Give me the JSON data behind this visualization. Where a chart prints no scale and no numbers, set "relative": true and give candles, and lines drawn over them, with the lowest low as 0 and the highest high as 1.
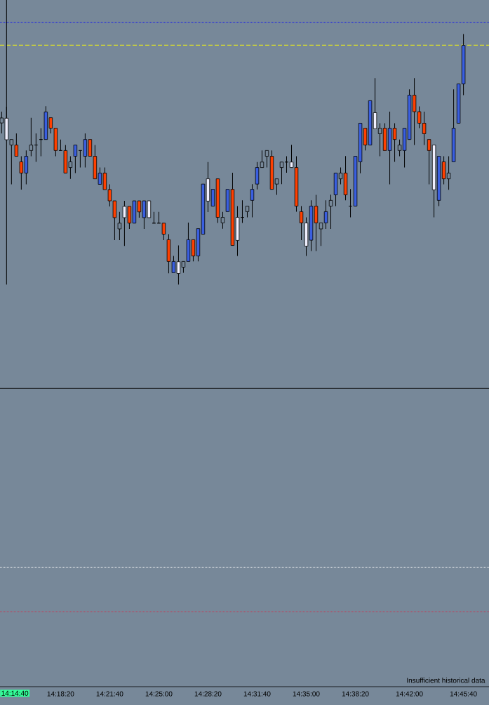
{
  "chart_data": {
    "type": "candlestick",
    "relative": true,
    "x": [
      14.23889,
      14.24444,
      14.25,
      14.25556,
      14.26111,
      14.26667,
      14.27222,
      14.27778,
      14.28333,
      14.28889,
      14.29444,
      14.3,
      14.30556,
      14.31111,
      14.31667,
      14.32222,
      14.32778,
      14.33333,
      14.33889,
      14.34444,
      14.35,
      14.35556,
      14.36111,
      14.36667,
      14.37222,
      14.37778,
      14.38333,
      14.38889,
      14.39444,
      14.4,
      14.40556,
      14.41111,
      14.41667,
      14.42222,
      14.42778,
      14.43333,
      14.43889,
      14.44444,
      14.45,
      14.45556,
      14.46111,
      14.46667,
      14.47222,
      14.47778,
      14.48333,
      14.48889,
      14.49444,
      14.5,
      14.50556,
      14.51111,
      14.51667,
      14.52222,
      14.52778,
      14.53333,
      14.53889,
      14.54444,
      14.55,
      14.55556,
      14.56111,
      14.56667,
      14.57222,
      14.57778,
      14.58333,
      14.58889,
      14.59444,
      14.6,
      14.60556,
      14.61111,
      14.61667,
      14.62222,
      14.62778,
      14.63333,
      14.63889,
      14.64444,
      14.65,
      14.65556,
      14.66111,
      14.66667,
      14.67222,
      14.67778,
      14.68333,
      14.68889,
      14.69444,
      14.7,
      14.70556,
      14.71111,
      14.71667,
      14.72222,
      14.72778,
      14.73333,
      14.73889,
      14.74444,
      14.75,
      14.75556,
      14.76111
    ],
    "ohlc": [
      [
        0.665,
        0.69,
        0.603,
        0.645
      ],
      [
        0.664,
        0.71,
        0.578,
        0.578
      ],
      [
        0.579,
        0.579,
        0.4,
        0.557
      ],
      [
        0.557,
        0.603,
        0.512,
        0.512
      ],
      [
        0.49,
        0.512,
        0.379,
        0.445
      ],
      [
        0.445,
        0.535,
        0.4,
        0.512
      ],
      [
        0.557,
        0.666,
        0.512,
        0.535
      ],
      [
        0.557,
        0.603,
        0.49,
        0.557
      ],
      [
        0.579,
        0.624,
        0.512,
        0.579
      ],
      [
        0.579,
        0.712,
        0.579,
        0.689
      ],
      [
        0.666,
        0.666,
        0.603,
        0.624
      ],
      [
        0.624,
        0.624,
        0.512,
        0.535
      ],
      [
        0.535,
        0.579,
        0.535,
        0.535
      ],
      [
        0.535,
        0.557,
        0.445,
        0.445
      ],
      [
        0.49,
        0.512,
        0.422,
        0.467
      ],
      [
        0.512,
        0.557,
        0.445,
        0.557
      ],
      [
        0.535,
        0.535,
        0.467,
        0.535
      ],
      [
        0.512,
        0.603,
        0.467,
        0.579
      ],
      [
        0.579,
        0.579,
        0.512,
        0.512
      ],
      [
        0.512,
        0.557,
        0.422,
        0.422
      ],
      [
        0.4,
        0.467,
        0.4,
        0.445
      ],
      [
        0.445,
        0.467,
        0.379,
        0.379
      ],
      [
        0.379,
        0.4,
        0.312,
        0.334
      ],
      [
        0.334,
        0.334,
        0.177,
        0.267
      ],
      [
        0.245,
        0.29,
        0.177,
        0.222
      ],
      [
        0.312,
        0.334,
        0.154,
        0.267
      ],
      [
        0.312,
        0.312,
        0.222,
        0.245
      ],
      [
        0.245,
        0.334,
        0.245,
        0.334
      ],
      [
        0.334,
        0.334,
        0.267,
        0.29
      ],
      [
        0.267,
        0.334,
        0.222,
        0.334
      ],
      [
        0.334,
        0.334,
        0.267,
        0.267
      ],
      [
        0.245,
        0.29,
        0.245,
        0.245
      ],
      [
        0.245,
        0.29,
        0.245,
        0.245
      ],
      [
        0.245,
        0.245,
        0.177,
        0.201
      ],
      [
        0.179,
        0.201,
        0.045,
        0.092
      ],
      [
        0.047,
        0.114,
        0.047,
        0.092
      ],
      [
        0.091,
        0.156,
        0,
        0.044
      ],
      [
        0.092,
        0.092,
        0.047,
        0.069
      ],
      [
        0.092,
        0.247,
        0.092,
        0.179
      ],
      [
        0.179,
        0.179,
        0.092,
        0.114
      ],
      [
        0.114,
        0.223,
        0.092,
        0.223
      ],
      [
        0.201,
        0.401,
        0.201,
        0.401
      ],
      [
        0.422,
        0.489,
        0.289,
        0.333
      ],
      [
        0.313,
        0.38,
        0.313,
        0.38
      ],
      [
        0.422,
        0.422,
        0.246,
        0.268
      ],
      [
        0.268,
        0.29,
        0.223,
        0.246
      ],
      [
        0.291,
        0.38,
        0.291,
        0.38
      ],
      [
        0.38,
        0.446,
        0.156,
        0.156
      ],
      [
        0.268,
        0.313,
        0.114,
        0.176
      ],
      [
        0.268,
        0.336,
        0.246,
        0.268
      ],
      [
        0.313,
        0.313,
        0.268,
        0.291
      ],
      [
        0.336,
        0.401,
        0.268,
        0.38
      ],
      [
        0.401,
        0.489,
        0.38,
        0.467
      ],
      [
        0.489,
        0.535,
        0.467,
        0.467
      ],
      [
        0.535,
        0.535,
        0.467,
        0.512
      ],
      [
        0.512,
        0.535,
        0.38,
        0.38
      ],
      [
        0.422,
        0.422,
        0.358,
        0.401
      ],
      [
        0.489,
        0.489,
        0.401,
        0.467
      ],
      [
        0.489,
        0.512,
        0.446,
        0.489
      ],
      [
        0.489,
        0.558,
        0.467,
        0.467
      ],
      [
        0.467,
        0.512,
        0.291,
        0.313
      ],
      [
        0.291,
        0.313,
        0.177,
        0.246
      ],
      [
        0.246,
        0.268,
        0.114,
        0.153
      ],
      [
        0.177,
        0.336,
        0.134,
        0.313
      ],
      [
        0.313,
        0.358,
        0.134,
        0.246
      ],
      [
        0.246,
        0.246,
        0.154,
        0.222
      ],
      [
        0.246,
        0.336,
        0.222,
        0.291
      ],
      [
        0.336,
        0.359,
        0.222,
        0.313
      ],
      [
        0.358,
        0.445,
        0.313,
        0.445
      ],
      [
        0.445,
        0.467,
        0.4,
        0.422
      ],
      [
        0.445,
        0.513,
        0.336,
        0.358
      ],
      [
        0.313,
        0.381,
        0.268,
        0.313
      ],
      [
        0.313,
        0.512,
        0.313,
        0.512
      ],
      [
        0.49,
        0.644,
        0.444,
        0.644
      ],
      [
        0.624,
        0.624,
        0.535,
        0.557
      ],
      [
        0.557,
        0.734,
        0.557,
        0.734
      ],
      [
        0.686,
        0.824,
        0.622,
        0.622
      ],
      [
        0.624,
        0.644,
        0.512,
        0.602
      ],
      [
        0.624,
        0.644,
        0.535,
        0.535
      ],
      [
        0.535,
        0.69,
        0.4,
        0.624
      ],
      [
        0.624,
        0.644,
        0.49,
        0.579
      ],
      [
        0.557,
        0.579,
        0.512,
        0.535
      ],
      [
        0.535,
        0.624,
        0.467,
        0.624
      ],
      [
        0.579,
        0.779,
        0.579,
        0.756
      ],
      [
        0.756,
        0.824,
        0.557,
        0.69
      ],
      [
        0.69,
        0.711,
        0.624,
        0.644
      ],
      [
        0.644,
        0.69,
        0.557,
        0.602
      ],
      [
        0.579,
        0.579,
        0.4,
        0.535
      ],
      [
        0.557,
        0.557,
        0.268,
        0.378
      ],
      [
        0.336,
        0.512,
        0.313,
        0.512
      ],
      [
        0.49,
        0.512,
        0.4,
        0.422
      ],
      [
        0.445,
        0.512,
        0.378,
        0.422
      ],
      [
        0.49,
        0.779,
        0.49,
        0.624
      ],
      [
        0.644,
        0.801,
        0.644,
        0.801
      ],
      [
        0.801,
        1,
        0.756,
        0.955
      ]
    ],
    "colors": [
      "#778899",
      "#f0f0ff",
      "#778899",
      "#ff4000",
      "#ff4000",
      "#3a5fe0",
      "#778899",
      "#000000",
      "#000000",
      "#3a5fe0",
      "#ff4000",
      "#ff4000",
      "#000000",
      "#ff4000",
      "#778899",
      "#3a5fe0",
      "#000000",
      "#3a5fe0",
      "#ff4000",
      "#ff4000",
      "#3a5fe0",
      "#ff4000",
      "#ff4000",
      "#ff4000",
      "#778899",
      "#f0f0ff",
      "#ff4000",
      "#3a5fe0",
      "#ff4000",
      "#3a5fe0",
      "#f0f0ff",
      "#000000",
      "#000000",
      "#ff4000",
      "#ff4000",
      "#3a5fe0",
      "#f0f0ff",
      "#778899",
      "#3a5fe0",
      "#ff4000",
      "#3a5fe0",
      "#3a5fe0",
      "#f0f0ff",
      "#3a5fe0",
      "#ff4000",
      "#778899",
      "#3a5fe0",
      "#ff4000",
      "#f0f0ff",
      "#000000",
      "#778899",
      "#3a5fe0",
      "#3a5fe0",
      "#778899",
      "#778899",
      "#ff4000",
      "#778899",
      "#778899",
      "#000000",
      "#f0f0ff",
      "#ff4000",
      "#ff4000",
      "#f0f0ff",
      "#3a5fe0",
      "#ff4000",
      "#778899",
      "#3a5fe0",
      "#778899",
      "#3a5fe0",
      "#778899",
      "#ff4000",
      "#000000",
      "#3a5fe0",
      "#3a5fe0",
      "#ff4000",
      "#3a5fe0",
      "#f0f0ff",
      "#778899",
      "#ff4000",
      "#3a5fe0",
      "#ff4000",
      "#778899",
      "#3a5fe0",
      "#3a5fe0",
      "#ff4000",
      "#ff4000",
      "#ff4000",
      "#ff4000",
      "#f0f0ff",
      "#3a5fe0",
      "#ff4000",
      "#778899",
      "#3a5fe0",
      "#3a5fe0",
      "#3a5fe0"
    ],
    "xlim": [
      14.23704,
      14.78999
    ],
    "xticks": [
      {
        "value": 14.30556,
        "label": "14:18:20"
      },
      {
        "value": 14.36111,
        "label": "14:21:40"
      },
      {
        "value": 14.41667,
        "label": "14:25:00"
      },
      {
        "value": 14.47222,
        "label": "14:28:20"
      },
      {
        "value": 14.52778,
        "label": "14:31:40"
      },
      {
        "value": 14.58333,
        "label": "14:35:00"
      },
      {
        "value": 14.63889,
        "label": "14:38:20"
      },
      {
        "value": 14.7,
        "label": "14:42:00"
      },
      {
        "value": 14.76111,
        "label": "14:45:40"
      }
    ],
    "ref_lines": [
      {
        "axis": "y",
        "value": 0.956,
        "color": "#ffff00",
        "line_style": "dashed"
      },
      {
        "axis": "y",
        "value": 1.046,
        "color": "#0000ff",
        "line_style": "dotted"
      },
      {
        "axis": "y",
        "value": -1.13,
        "color": "#ffffff",
        "line_style": "dotted"
      },
      {
        "axis": "y",
        "value": -1.306,
        "color": "#dd2244",
        "line_style": "dotted"
      },
      {
        "axis": "y",
        "value": -0.415,
        "color": "#000000",
        "line_style": "solid"
      },
      {
        "axis": "x",
        "value": 14.24444,
        "label": "14:14:40",
        "color": "#000000",
        "line_style": "solid"
      }
    ],
    "annotations": [
      "Insufficient historical data"
    ]
  }
}
